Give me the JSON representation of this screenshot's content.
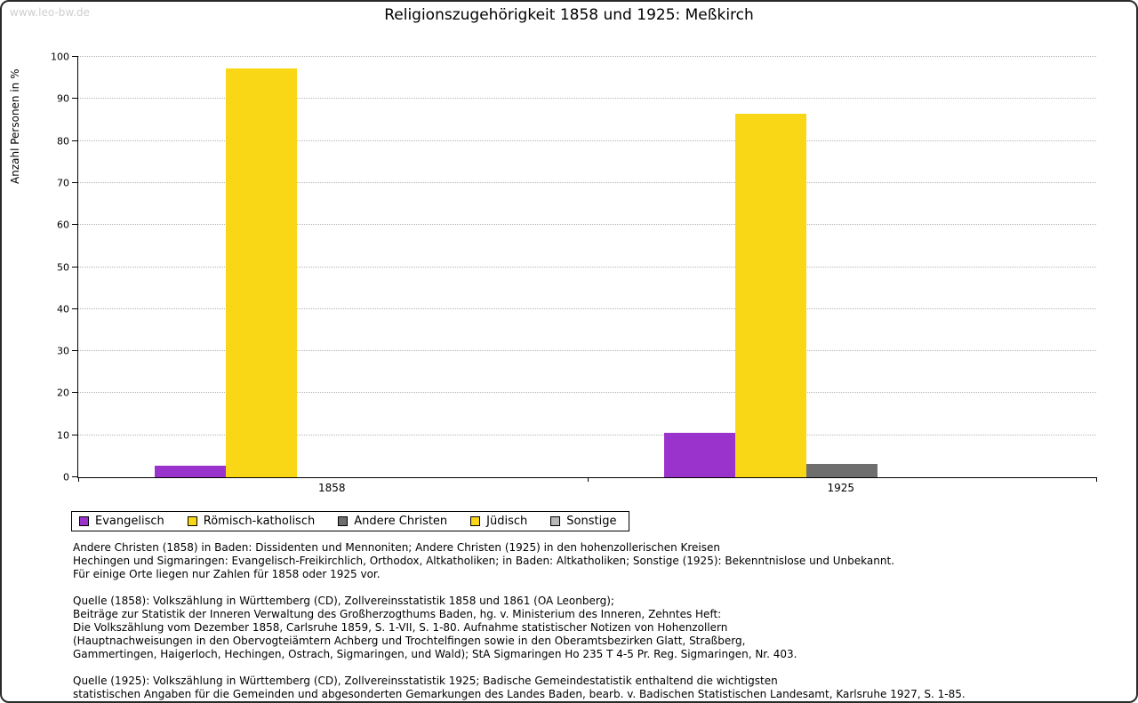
{
  "watermark": "www.leo-bw.de",
  "title": "Religionszugehörigkeit 1858 und 1925: Meßkirch",
  "chart_data": {
    "type": "bar",
    "title": "Religionszugehörigkeit 1858 und 1925: Meßkirch",
    "ylabel": "Anzahl Personen in %",
    "xlabel": "",
    "ylim": [
      0,
      100
    ],
    "ytick_step": 10,
    "grid": true,
    "legend_position": "bottom-left",
    "categories": [
      "1858",
      "1925"
    ],
    "series": [
      {
        "name": "Evangelisch",
        "color": "#9933cc",
        "values": [
          2.7,
          10.5
        ]
      },
      {
        "name": "Römisch-katholisch",
        "color": "#f9d616",
        "values": [
          97.3,
          86.4
        ]
      },
      {
        "name": "Andere Christen",
        "color": "#6e6e6e",
        "values": [
          0,
          3.1
        ]
      },
      {
        "name": "Jüdisch",
        "color": "#f9d616",
        "values": [
          0,
          0
        ]
      },
      {
        "name": "Sonstige",
        "color": "#b8b8b8",
        "values": [
          0,
          0
        ]
      }
    ]
  },
  "notes": {
    "para1": [
      "Andere Christen (1858) in Baden: Dissidenten und Mennoniten; Andere Christen (1925) in den hohenzollerischen Kreisen",
      "Hechingen und Sigmaringen: Evangelisch-Freikirchlich, Orthodox, Altkatholiken; in Baden: Altkatholiken; Sonstige (1925): Bekenntnislose und Unbekannt.",
      "Für einige Orte liegen nur Zahlen für 1858 oder 1925 vor."
    ],
    "para2": [
      "Quelle (1858): Volkszählung in Württemberg (CD), Zollvereinsstatistik 1858 und 1861 (OA Leonberg);",
      "Beiträge zur Statistik der Inneren Verwaltung des Großherzogthums Baden, hg. v. Ministerium des Inneren, Zehntes Heft:",
      "Die Volkszählung vom Dezember 1858, Carlsruhe 1859, S. 1-VII, S. 1-80. Aufnahme statistischer Notizen von Hohenzollern",
      "(Hauptnachweisungen in den Obervogteiämtern Achberg und Trochtelfingen sowie in den Oberamtsbezirken Glatt, Straßberg,",
      "Gammertingen, Haigerloch, Hechingen, Ostrach, Sigmaringen, und Wald); StA Sigmaringen Ho 235 T 4-5 Pr. Reg. Sigmaringen, Nr. 403."
    ],
    "para3": [
      "Quelle (1925): Volkszählung in Württemberg (CD), Zollvereinsstatistik 1925; Badische Gemeindestatistik enthaltend die wichtigsten",
      "statistischen Angaben für die Gemeinden und abgesonderten Gemarkungen des Landes Baden, bearb. v. Badischen Statistischen Landesamt, Karlsruhe 1927, S. 1-85."
    ]
  }
}
